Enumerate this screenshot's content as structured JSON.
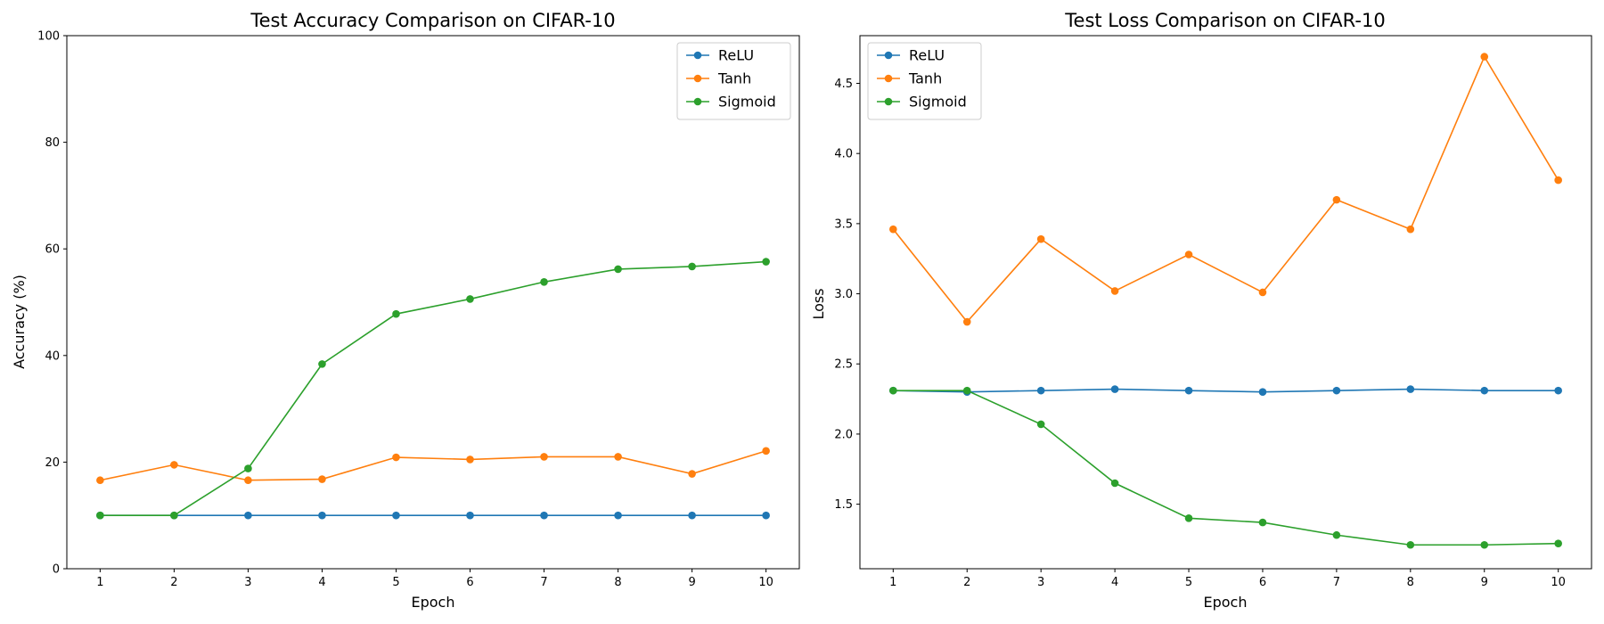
{
  "colors": {
    "ReLU": "#1f77b4",
    "Tanh": "#ff7f0e",
    "Sigmoid": "#2ca02c"
  },
  "chart_data": [
    {
      "type": "line",
      "title": "Test Accuracy Comparison on CIFAR-10",
      "xlabel": "Epoch",
      "ylabel": "Accuracy (%)",
      "x": [
        1,
        2,
        3,
        4,
        5,
        6,
        7,
        8,
        9,
        10
      ],
      "xlim": [
        0.55,
        10.45
      ],
      "ylim": [
        0,
        100
      ],
      "yticks": [
        0,
        20,
        40,
        60,
        80,
        100
      ],
      "ytick_labels": [
        "0",
        "20",
        "40",
        "60",
        "80",
        "100"
      ],
      "grid": false,
      "legend_position": "top-right",
      "series": [
        {
          "name": "ReLU",
          "values": [
            10.0,
            10.0,
            10.0,
            10.0,
            10.0,
            10.0,
            10.0,
            10.0,
            10.0,
            10.0
          ]
        },
        {
          "name": "Tanh",
          "values": [
            16.6,
            19.5,
            16.6,
            16.8,
            20.9,
            20.5,
            21.0,
            21.0,
            17.8,
            22.1
          ]
        },
        {
          "name": "Sigmoid",
          "values": [
            10.0,
            10.0,
            18.8,
            38.4,
            47.8,
            50.6,
            53.8,
            56.2,
            56.7,
            57.6
          ]
        }
      ]
    },
    {
      "type": "line",
      "title": "Test Loss Comparison on CIFAR-10",
      "xlabel": "Epoch",
      "ylabel": "Loss",
      "x": [
        1,
        2,
        3,
        4,
        5,
        6,
        7,
        8,
        9,
        10
      ],
      "xlim": [
        0.55,
        10.45
      ],
      "ylim": [
        1.04,
        4.84
      ],
      "yticks": [
        1.5,
        2.0,
        2.5,
        3.0,
        3.5,
        4.0,
        4.5
      ],
      "ytick_labels": [
        "1.5",
        "2.0",
        "2.5",
        "3.0",
        "3.5",
        "4.0",
        "4.5"
      ],
      "grid": false,
      "legend_position": "top-left",
      "series": [
        {
          "name": "ReLU",
          "values": [
            2.31,
            2.3,
            2.31,
            2.32,
            2.31,
            2.3,
            2.31,
            2.32,
            2.31,
            2.31
          ]
        },
        {
          "name": "Tanh",
          "values": [
            3.46,
            2.8,
            3.39,
            3.02,
            3.28,
            3.01,
            3.67,
            3.46,
            4.69,
            3.81
          ]
        },
        {
          "name": "Sigmoid",
          "values": [
            2.31,
            2.31,
            2.07,
            1.65,
            1.4,
            1.37,
            1.28,
            1.21,
            1.21,
            1.22
          ]
        }
      ]
    }
  ]
}
